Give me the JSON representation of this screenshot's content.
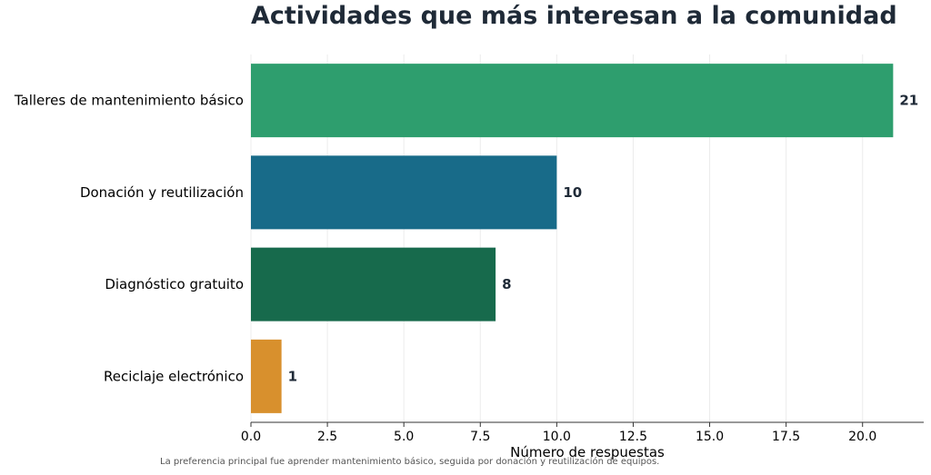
{
  "title": "Actividades que más interesan a la comunidad",
  "caption": "La preferencia principal fue aprender mantenimiento básico, seguida por donación y reutilización de equipos.",
  "chart_data": {
    "type": "bar",
    "orientation": "horizontal",
    "title": "Actividades que más interesan a la comunidad",
    "xlabel": "Número de respuestas",
    "ylabel": "",
    "categories": [
      "Talleres de mantenimiento básico",
      "Donación y reutilización",
      "Diagnóstico gratuito",
      "Reciclaje electrónico"
    ],
    "values": [
      21,
      10,
      8,
      1
    ],
    "value_labels": [
      "21",
      "10",
      "8",
      "1"
    ],
    "colors": [
      "#2e9e6e",
      "#186b89",
      "#176a4c",
      "#d8902d"
    ],
    "xlim": [
      0,
      22
    ],
    "xticks": [
      "0.0",
      "2.5",
      "5.0",
      "7.5",
      "10.0",
      "12.5",
      "15.0",
      "17.5",
      "20.0"
    ],
    "grid": "vertical",
    "legend": "none"
  }
}
